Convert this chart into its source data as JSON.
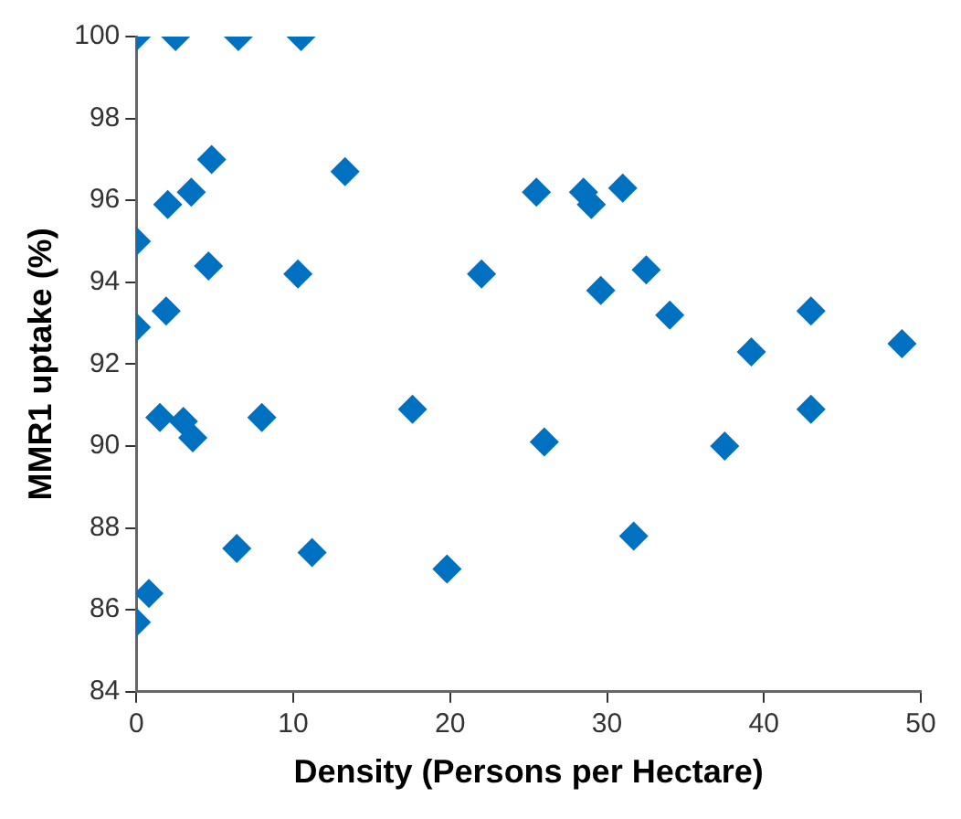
{
  "chart_data": {
    "type": "scatter",
    "xlabel": "Density (Persons per Hectare)",
    "ylabel": "MMR1 uptake (%)",
    "x": [
      0,
      2.5,
      6.5,
      10.5,
      4.8,
      13.3,
      2,
      3.5,
      0,
      4.6,
      10.3,
      22,
      1.9,
      0,
      1.5,
      3,
      3.6,
      8,
      17.6,
      6.4,
      11.2,
      19.8,
      0.8,
      0,
      25.5,
      28.5,
      29,
      31,
      32.5,
      29.6,
      34,
      43,
      39.2,
      48.8,
      43,
      26,
      37.5,
      31.7
    ],
    "values": [
      100,
      100,
      100,
      100,
      97,
      96.7,
      95.9,
      96.2,
      95,
      94.4,
      94.2,
      94.2,
      93.3,
      92.9,
      90.7,
      90.6,
      90.2,
      90.7,
      90.9,
      87.5,
      87.4,
      87,
      86.4,
      85.7,
      96.2,
      96.2,
      95.9,
      96.3,
      94.3,
      93.8,
      93.2,
      93.3,
      92.3,
      92.5,
      90.9,
      90.1,
      90,
      87.8
    ],
    "color": "#0070c0",
    "marker": "diamond",
    "grid": false,
    "legend": false,
    "xlim": [
      0,
      50
    ],
    "xticks": [
      0,
      10,
      20,
      30,
      40,
      50
    ],
    "ylim": [
      84,
      100
    ],
    "yticks": [
      84,
      86,
      88,
      90,
      92,
      94,
      96,
      98,
      100
    ]
  }
}
